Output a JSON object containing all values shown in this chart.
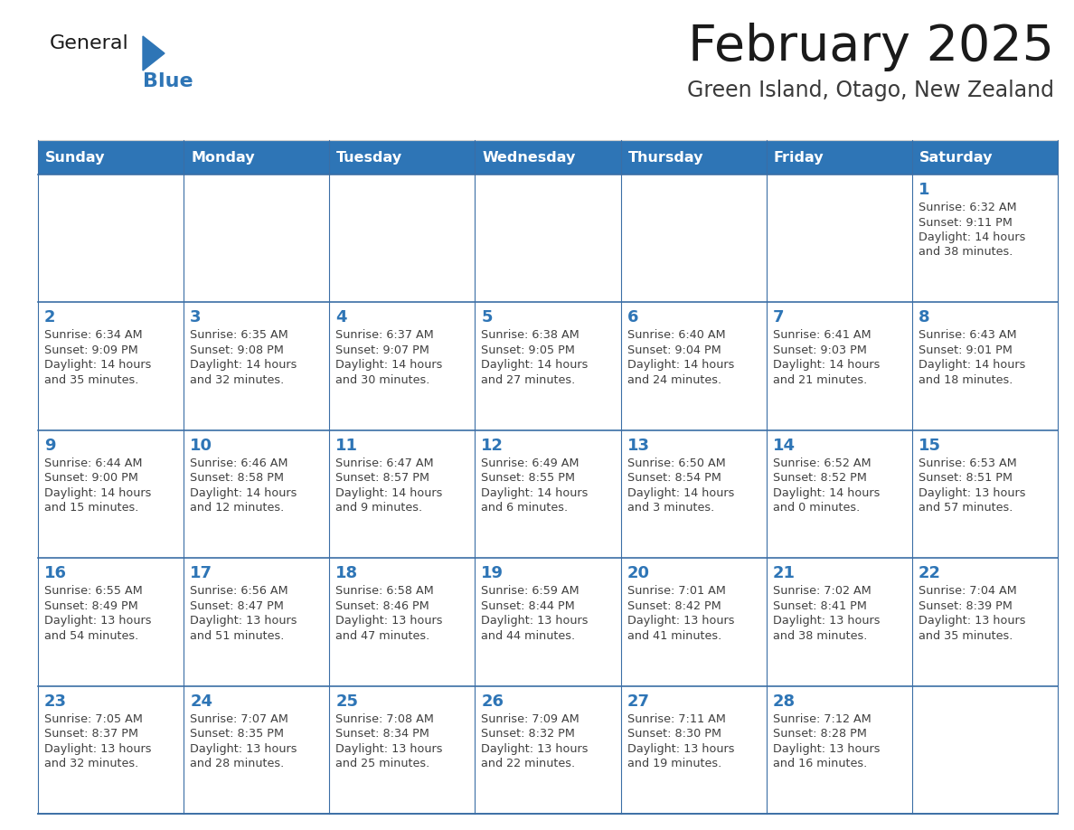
{
  "title": "February 2025",
  "subtitle": "Green Island, Otago, New Zealand",
  "days_of_week": [
    "Sunday",
    "Monday",
    "Tuesday",
    "Wednesday",
    "Thursday",
    "Friday",
    "Saturday"
  ],
  "header_bg": "#2E75B6",
  "header_text": "#FFFFFF",
  "cell_bg": "#FFFFFF",
  "cell_border": "#3B6EA5",
  "day_num_color": "#2E75B6",
  "info_text_color": "#404040",
  "title_color": "#1a1a1a",
  "subtitle_color": "#3a3a3a",
  "logo_color_general": "#1a1a1a",
  "logo_color_blue": "#2E75B6",
  "logo_triangle_color": "#2E75B6",
  "calendar_data": [
    [
      null,
      null,
      null,
      null,
      null,
      null,
      {
        "day": 1,
        "sunrise": "6:32 AM",
        "sunset": "9:11 PM",
        "daylight": "14 hours\nand 38 minutes."
      }
    ],
    [
      {
        "day": 2,
        "sunrise": "6:34 AM",
        "sunset": "9:09 PM",
        "daylight": "14 hours\nand 35 minutes."
      },
      {
        "day": 3,
        "sunrise": "6:35 AM",
        "sunset": "9:08 PM",
        "daylight": "14 hours\nand 32 minutes."
      },
      {
        "day": 4,
        "sunrise": "6:37 AM",
        "sunset": "9:07 PM",
        "daylight": "14 hours\nand 30 minutes."
      },
      {
        "day": 5,
        "sunrise": "6:38 AM",
        "sunset": "9:05 PM",
        "daylight": "14 hours\nand 27 minutes."
      },
      {
        "day": 6,
        "sunrise": "6:40 AM",
        "sunset": "9:04 PM",
        "daylight": "14 hours\nand 24 minutes."
      },
      {
        "day": 7,
        "sunrise": "6:41 AM",
        "sunset": "9:03 PM",
        "daylight": "14 hours\nand 21 minutes."
      },
      {
        "day": 8,
        "sunrise": "6:43 AM",
        "sunset": "9:01 PM",
        "daylight": "14 hours\nand 18 minutes."
      }
    ],
    [
      {
        "day": 9,
        "sunrise": "6:44 AM",
        "sunset": "9:00 PM",
        "daylight": "14 hours\nand 15 minutes."
      },
      {
        "day": 10,
        "sunrise": "6:46 AM",
        "sunset": "8:58 PM",
        "daylight": "14 hours\nand 12 minutes."
      },
      {
        "day": 11,
        "sunrise": "6:47 AM",
        "sunset": "8:57 PM",
        "daylight": "14 hours\nand 9 minutes."
      },
      {
        "day": 12,
        "sunrise": "6:49 AM",
        "sunset": "8:55 PM",
        "daylight": "14 hours\nand 6 minutes."
      },
      {
        "day": 13,
        "sunrise": "6:50 AM",
        "sunset": "8:54 PM",
        "daylight": "14 hours\nand 3 minutes."
      },
      {
        "day": 14,
        "sunrise": "6:52 AM",
        "sunset": "8:52 PM",
        "daylight": "14 hours\nand 0 minutes."
      },
      {
        "day": 15,
        "sunrise": "6:53 AM",
        "sunset": "8:51 PM",
        "daylight": "13 hours\nand 57 minutes."
      }
    ],
    [
      {
        "day": 16,
        "sunrise": "6:55 AM",
        "sunset": "8:49 PM",
        "daylight": "13 hours\nand 54 minutes."
      },
      {
        "day": 17,
        "sunrise": "6:56 AM",
        "sunset": "8:47 PM",
        "daylight": "13 hours\nand 51 minutes."
      },
      {
        "day": 18,
        "sunrise": "6:58 AM",
        "sunset": "8:46 PM",
        "daylight": "13 hours\nand 47 minutes."
      },
      {
        "day": 19,
        "sunrise": "6:59 AM",
        "sunset": "8:44 PM",
        "daylight": "13 hours\nand 44 minutes."
      },
      {
        "day": 20,
        "sunrise": "7:01 AM",
        "sunset": "8:42 PM",
        "daylight": "13 hours\nand 41 minutes."
      },
      {
        "day": 21,
        "sunrise": "7:02 AM",
        "sunset": "8:41 PM",
        "daylight": "13 hours\nand 38 minutes."
      },
      {
        "day": 22,
        "sunrise": "7:04 AM",
        "sunset": "8:39 PM",
        "daylight": "13 hours\nand 35 minutes."
      }
    ],
    [
      {
        "day": 23,
        "sunrise": "7:05 AM",
        "sunset": "8:37 PM",
        "daylight": "13 hours\nand 32 minutes."
      },
      {
        "day": 24,
        "sunrise": "7:07 AM",
        "sunset": "8:35 PM",
        "daylight": "13 hours\nand 28 minutes."
      },
      {
        "day": 25,
        "sunrise": "7:08 AM",
        "sunset": "8:34 PM",
        "daylight": "13 hours\nand 25 minutes."
      },
      {
        "day": 26,
        "sunrise": "7:09 AM",
        "sunset": "8:32 PM",
        "daylight": "13 hours\nand 22 minutes."
      },
      {
        "day": 27,
        "sunrise": "7:11 AM",
        "sunset": "8:30 PM",
        "daylight": "13 hours\nand 19 minutes."
      },
      {
        "day": 28,
        "sunrise": "7:12 AM",
        "sunset": "8:28 PM",
        "daylight": "13 hours\nand 16 minutes."
      },
      null
    ]
  ]
}
